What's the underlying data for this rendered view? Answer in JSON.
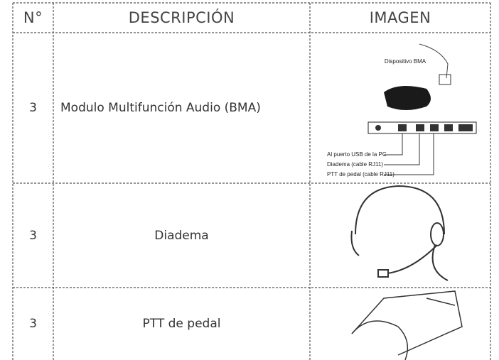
{
  "table": {
    "header": [
      "N°",
      "DESCRIPCIÓN",
      "IMAGEN"
    ],
    "rows": [
      [
        "3",
        "Modulo Multifunción Audio (BMA)"
      ],
      [
        "3",
        "Diadema"
      ],
      [
        "3",
        "PTT de pedal"
      ]
    ]
  },
  "image_labels": {
    "device": "Dispositivo BMA",
    "usb": "Al puerto USB de la PC",
    "headset": "Diadema (cable RJ11)",
    "pedal": "PTT de pedal (cable RJ11)"
  }
}
